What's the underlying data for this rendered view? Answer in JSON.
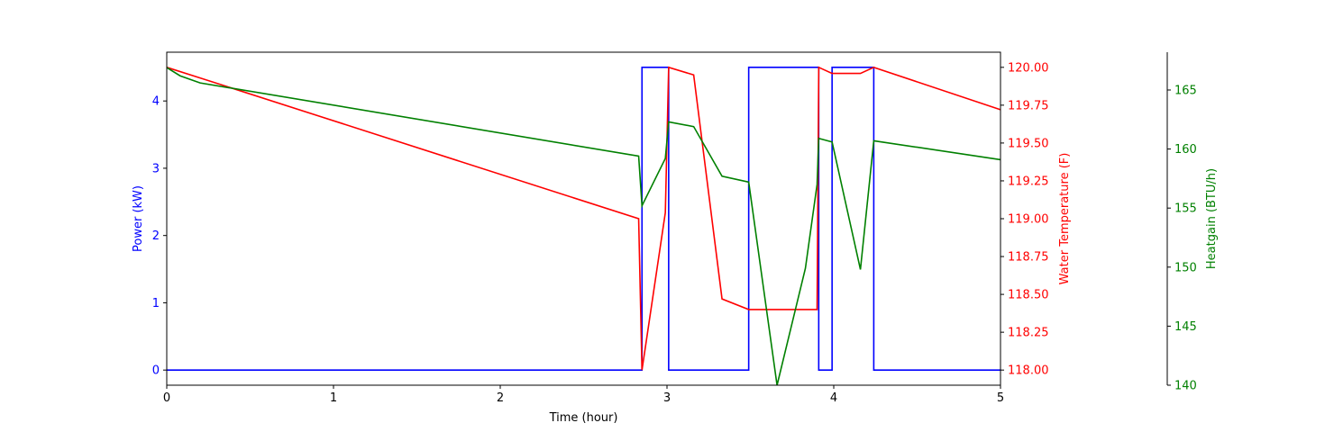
{
  "chart_data": {
    "type": "line",
    "xlabel": "Time (hour)",
    "xlim": [
      0,
      5
    ],
    "xticks": [
      0,
      1,
      2,
      3,
      4,
      5
    ],
    "axes": [
      {
        "id": "power",
        "label": "Power (kW)",
        "color": "#0000ff",
        "ylim": [
          -0.225,
          4.725
        ],
        "ticks": [
          0,
          1,
          2,
          3,
          4
        ]
      },
      {
        "id": "temp",
        "label": "Water Temperature (F)",
        "color": "#ff0000",
        "ylim": [
          117.9,
          120.1
        ],
        "ticks": [
          118.0,
          118.25,
          118.5,
          118.75,
          119.0,
          119.25,
          119.5,
          119.75,
          120.0
        ],
        "tick_decimals": 2
      },
      {
        "id": "heat",
        "label": "Heatgain (BTU/h)",
        "color": "#008000",
        "ylim": [
          140,
          168.2
        ],
        "ticks": [
          140,
          145,
          150,
          155,
          160,
          165
        ]
      }
    ],
    "series": [
      {
        "axis": "power",
        "color": "#0000ff",
        "step": true,
        "x": [
          0,
          2.85,
          2.85,
          3.01,
          3.01,
          3.49,
          3.49,
          3.91,
          3.91,
          3.99,
          3.99,
          4.24,
          4.24,
          5.0
        ],
        "y": [
          0,
          0,
          4.5,
          4.5,
          0,
          0,
          4.5,
          4.5,
          0,
          0,
          4.5,
          4.5,
          0,
          0
        ]
      },
      {
        "axis": "temp",
        "color": "#ff0000",
        "x": [
          0,
          0.2,
          2.83,
          2.85,
          2.99,
          3.01,
          3.16,
          3.33,
          3.49,
          3.66,
          3.83,
          3.9,
          3.91,
          3.99,
          4.16,
          4.24,
          5.0
        ],
        "y": [
          120.0,
          119.93,
          119.0,
          118.0,
          119.04,
          120.0,
          119.95,
          118.47,
          118.4,
          118.4,
          118.4,
          118.4,
          120.0,
          119.96,
          119.96,
          120.0,
          119.72
        ]
      },
      {
        "axis": "heat",
        "color": "#008000",
        "x": [
          0,
          0.08,
          0.2,
          2.83,
          2.85,
          2.99,
          3.01,
          3.16,
          3.33,
          3.49,
          3.66,
          3.83,
          3.9,
          3.91,
          3.99,
          4.16,
          4.24,
          5.0
        ],
        "y": [
          166.9,
          166.2,
          165.6,
          159.4,
          155.2,
          159.2,
          162.3,
          161.9,
          157.7,
          157.2,
          140.0,
          149.9,
          157.0,
          160.9,
          160.6,
          149.8,
          160.7,
          159.1
        ]
      }
    ]
  }
}
